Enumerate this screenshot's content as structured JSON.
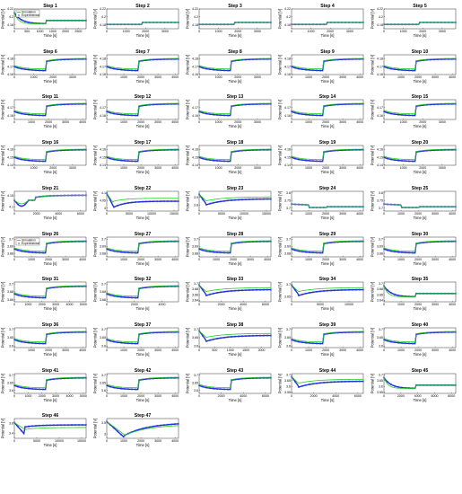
{
  "figure": {
    "xlabel": "Time [s]",
    "ylabel": "Potential [V]",
    "legend": {
      "simulation": "Simulation",
      "experimental": "Experimental"
    },
    "colors": {
      "simulation": "#22cc22",
      "experimental": "#1f2fd6",
      "experimental_marker": "#3140e8"
    }
  },
  "chart_data": [
    {
      "title": "Step 1",
      "type": "line",
      "xticks": [
        "0",
        "500",
        "1000",
        "1500",
        "2000",
        "2500"
      ],
      "xmax": 2800,
      "yticks": [
        "4.18",
        "4.2",
        "4.22"
      ],
      "ymin": 4.17,
      "ymax": 4.22,
      "shape": "decay_then_step",
      "legend": "top-left"
    },
    {
      "title": "Step 2",
      "type": "line",
      "xticks": [
        "0",
        "1000",
        "2000",
        "3000"
      ],
      "xmax": 3700,
      "yticks": [
        "4.18",
        "4.2",
        "4.22"
      ],
      "ymin": 4.17,
      "ymax": 4.22,
      "shape": "step_flat"
    },
    {
      "title": "Step 3",
      "type": "line",
      "xticks": [
        "0",
        "1000",
        "2000",
        "3000"
      ],
      "xmax": 3700,
      "yticks": [
        "4.18",
        "4.2",
        "4.22"
      ],
      "ymin": 4.17,
      "ymax": 4.22,
      "shape": "step_flat"
    },
    {
      "title": "Step 4",
      "type": "line",
      "xticks": [
        "0",
        "1000",
        "2000",
        "3000"
      ],
      "xmax": 3700,
      "yticks": [
        "4.18",
        "4.2",
        "4.22"
      ],
      "ymin": 4.17,
      "ymax": 4.22,
      "shape": "step_flat"
    },
    {
      "title": "Step 5",
      "type": "line",
      "xticks": [
        "0",
        "1000",
        "2000",
        "3000"
      ],
      "xmax": 3700,
      "yticks": [
        "4.18",
        "4.2",
        "4.22"
      ],
      "ymin": 4.17,
      "ymax": 4.22,
      "shape": "step_flat"
    },
    {
      "title": "Step 6",
      "type": "line",
      "xticks": [
        "0",
        "1000",
        "2000",
        "3000"
      ],
      "xmax": 3700,
      "yticks": [
        "4.16",
        "4.17",
        "4.18"
      ],
      "ymin": 4.16,
      "ymax": 4.185,
      "shape": "step"
    },
    {
      "title": "Step 7",
      "type": "line",
      "xticks": [
        "0",
        "1000",
        "2000",
        "3000",
        "4000"
      ],
      "xmax": 4200,
      "yticks": [
        "4.16",
        "4.17",
        "4.18"
      ],
      "ymin": 4.16,
      "ymax": 4.185,
      "shape": "step"
    },
    {
      "title": "Step 8",
      "type": "line",
      "xticks": [
        "0",
        "1000",
        "2000",
        "3000"
      ],
      "xmax": 3700,
      "yticks": [
        "4.16",
        "4.17",
        "4.18"
      ],
      "ymin": 4.16,
      "ymax": 4.185,
      "shape": "step"
    },
    {
      "title": "Step 9",
      "type": "line",
      "xticks": [
        "0",
        "1000",
        "2000",
        "3000",
        "4000"
      ],
      "xmax": 4200,
      "yticks": [
        "4.16",
        "4.17",
        "4.18"
      ],
      "ymin": 4.16,
      "ymax": 4.185,
      "shape": "step"
    },
    {
      "title": "Step 10",
      "type": "line",
      "xticks": [
        "0",
        "1000",
        "2000",
        "3000",
        "4000"
      ],
      "xmax": 4200,
      "yticks": [
        "4.16",
        "4.17",
        "4.18"
      ],
      "ymin": 4.16,
      "ymax": 4.185,
      "shape": "step"
    },
    {
      "title": "Step 11",
      "type": "line",
      "xticks": [
        "0",
        "1000",
        "2000",
        "3000",
        "4000"
      ],
      "xmax": 4200,
      "yticks": [
        "4.16",
        "4.17"
      ],
      "ymin": 4.155,
      "ymax": 4.18,
      "shape": "step"
    },
    {
      "title": "Step 12",
      "type": "line",
      "xticks": [
        "0",
        "1000",
        "2000",
        "3000",
        "4000"
      ],
      "xmax": 4200,
      "yticks": [
        "4.16",
        "4.17"
      ],
      "ymin": 4.155,
      "ymax": 4.18,
      "shape": "step"
    },
    {
      "title": "Step 13",
      "type": "line",
      "xticks": [
        "0",
        "1000",
        "2000",
        "3000"
      ],
      "xmax": 3700,
      "yticks": [
        "4.16",
        "4.17"
      ],
      "ymin": 4.155,
      "ymax": 4.18,
      "shape": "step"
    },
    {
      "title": "Step 14",
      "type": "line",
      "xticks": [
        "0",
        "1000",
        "2000",
        "3000",
        "4000"
      ],
      "xmax": 4200,
      "yticks": [
        "4.16",
        "4.17"
      ],
      "ymin": 4.155,
      "ymax": 4.18,
      "shape": "step"
    },
    {
      "title": "Step 15",
      "type": "line",
      "xticks": [
        "0",
        "1000",
        "2000",
        "3000"
      ],
      "xmax": 3700,
      "yticks": [
        "4.16",
        "4.17"
      ],
      "ymin": 4.155,
      "ymax": 4.18,
      "shape": "step"
    },
    {
      "title": "Step 16",
      "type": "line",
      "xticks": [
        "0",
        "1000",
        "2000",
        "3000"
      ],
      "xmax": 3700,
      "yticks": [
        "4.14",
        "4.15",
        "4.16"
      ],
      "ymin": 4.14,
      "ymax": 4.165,
      "shape": "step"
    },
    {
      "title": "Step 17",
      "type": "line",
      "xticks": [
        "0",
        "1000",
        "2000",
        "3000",
        "4000"
      ],
      "xmax": 4200,
      "yticks": [
        "4.14",
        "4.15",
        "4.16"
      ],
      "ymin": 4.14,
      "ymax": 4.165,
      "shape": "step"
    },
    {
      "title": "Step 18",
      "type": "line",
      "xticks": [
        "0",
        "1000",
        "2000",
        "3000"
      ],
      "xmax": 3700,
      "yticks": [
        "4.14",
        "4.15",
        "4.16"
      ],
      "ymin": 4.14,
      "ymax": 4.165,
      "shape": "step"
    },
    {
      "title": "Step 19",
      "type": "line",
      "xticks": [
        "0",
        "1000",
        "2000",
        "3000",
        "4000"
      ],
      "xmax": 4200,
      "yticks": [
        "4.14",
        "4.15",
        "4.16"
      ],
      "ymin": 4.14,
      "ymax": 4.165,
      "shape": "step"
    },
    {
      "title": "Step 20",
      "type": "line",
      "xticks": [
        "0",
        "1000",
        "2000",
        "3000"
      ],
      "xmax": 3700,
      "yticks": [
        "4.14",
        "4.15",
        "4.16"
      ],
      "ymin": 4.14,
      "ymax": 4.165,
      "shape": "step"
    },
    {
      "title": "Step 21",
      "type": "line",
      "xticks": [
        "0",
        "2000",
        "4000",
        "6000"
      ],
      "xmax": 6500,
      "yticks": [
        "4.1",
        "4.15"
      ],
      "ymin": 4.08,
      "ymax": 4.17,
      "shape": "dip_step"
    },
    {
      "title": "Step 22",
      "type": "line",
      "xticks": [
        "0",
        "5000",
        "10000",
        "15000"
      ],
      "xmax": 16000,
      "yticks": [
        "4",
        "4.05",
        "4.1"
      ],
      "ymin": 3.98,
      "ymax": 4.11,
      "shape": "deep_dip"
    },
    {
      "title": "Step 23",
      "type": "line",
      "xticks": [
        "0",
        "5000",
        "10000",
        "15000"
      ],
      "xmax": 16000,
      "yticks": [
        "3.8",
        "3.9"
      ],
      "ymin": 3.72,
      "ymax": 3.98,
      "shape": "drop_recover"
    },
    {
      "title": "Step 24",
      "type": "line",
      "xticks": [
        "0",
        "1000",
        "2000",
        "3000",
        "4000"
      ],
      "xmax": 4200,
      "yticks": [
        "3.7",
        "3.75",
        "3.8"
      ],
      "ymin": 3.68,
      "ymax": 3.81,
      "shape": "low_flat"
    },
    {
      "title": "Step 25",
      "type": "line",
      "xticks": [
        "0",
        "1000",
        "2000",
        "3000",
        "4000"
      ],
      "xmax": 4200,
      "yticks": [
        "3.7",
        "3.75",
        "3.8"
      ],
      "ymin": 3.68,
      "ymax": 3.81,
      "shape": "low_flat"
    },
    {
      "title": "Step 26",
      "type": "line",
      "xticks": [
        "0",
        "1000",
        "2000",
        "3000",
        "4000"
      ],
      "xmax": 4200,
      "yticks": [
        "3.68",
        "3.69",
        "3.7"
      ],
      "ymin": 3.675,
      "ymax": 3.703,
      "shape": "step",
      "legend": "top-left"
    },
    {
      "title": "Step 27",
      "type": "line",
      "xticks": [
        "0",
        "1000",
        "2000",
        "3000",
        "4000"
      ],
      "xmax": 4200,
      "yticks": [
        "3.68",
        "3.69",
        "3.7"
      ],
      "ymin": 3.675,
      "ymax": 3.703,
      "shape": "step"
    },
    {
      "title": "Step 28",
      "type": "line",
      "xticks": [
        "0",
        "1000",
        "2000",
        "3000",
        "4000"
      ],
      "xmax": 4200,
      "yticks": [
        "3.68",
        "3.69",
        "3.7"
      ],
      "ymin": 3.675,
      "ymax": 3.703,
      "shape": "step"
    },
    {
      "title": "Step 29",
      "type": "line",
      "xticks": [
        "0",
        "1000",
        "2000",
        "3000",
        "4000"
      ],
      "xmax": 4200,
      "yticks": [
        "3.68",
        "3.69",
        "3.7"
      ],
      "ymin": 3.675,
      "ymax": 3.703,
      "shape": "step"
    },
    {
      "title": "Step 30",
      "type": "line",
      "xticks": [
        "0",
        "1000",
        "2000",
        "3000",
        "4000"
      ],
      "xmax": 4200,
      "yticks": [
        "3.68",
        "3.69",
        "3.7"
      ],
      "ymin": 3.675,
      "ymax": 3.703,
      "shape": "step"
    },
    {
      "title": "Step 31",
      "type": "line",
      "xticks": [
        "0",
        "1000",
        "2000",
        "3000",
        "4000",
        "5000"
      ],
      "xmax": 5200,
      "yticks": [
        "3.66",
        "3.68",
        "3.7"
      ],
      "ymin": 3.655,
      "ymax": 3.705,
      "shape": "step"
    },
    {
      "title": "Step 32",
      "type": "line",
      "xticks": [
        "0",
        "2000",
        "4000"
      ],
      "xmax": 5200,
      "yticks": [
        "3.66",
        "3.68",
        "3.7"
      ],
      "ymin": 3.655,
      "ymax": 3.705,
      "shape": "step"
    },
    {
      "title": "Step 33",
      "type": "line",
      "xticks": [
        "0",
        "2000",
        "4000",
        "6000"
      ],
      "xmax": 6500,
      "yticks": [
        "3.64",
        "3.66",
        "3.68",
        "3.7"
      ],
      "ymin": 3.635,
      "ymax": 3.705,
      "shape": "drop_recover"
    },
    {
      "title": "Step 34",
      "type": "line",
      "xticks": [
        "0",
        "5000",
        "10000"
      ],
      "xmax": 12500,
      "yticks": [
        "3.65",
        "3.7"
      ],
      "ymin": 3.63,
      "ymax": 3.71,
      "shape": "drop_recover"
    },
    {
      "title": "Step 35",
      "type": "line",
      "xticks": [
        "0",
        "1000",
        "2000",
        "3000",
        "4000"
      ],
      "xmax": 4200,
      "yticks": [
        "3.64",
        "3.66",
        "3.68",
        "3.7"
      ],
      "ymin": 3.635,
      "ymax": 3.705,
      "shape": "decay_then_step"
    },
    {
      "title": "Step 36",
      "type": "line",
      "xticks": [
        "0",
        "1000",
        "2000",
        "3000",
        "4000"
      ],
      "xmax": 4200,
      "yticks": [
        "3.6",
        "3.65",
        "3.7"
      ],
      "ymin": 3.59,
      "ymax": 3.71,
      "shape": "step"
    },
    {
      "title": "Step 37",
      "type": "line",
      "xticks": [
        "0",
        "1000",
        "2000",
        "3000",
        "4000"
      ],
      "xmax": 4200,
      "yticks": [
        "3.6",
        "3.65",
        "3.7"
      ],
      "ymin": 3.59,
      "ymax": 3.71,
      "shape": "step"
    },
    {
      "title": "Step 38",
      "type": "line",
      "xticks": [
        "0",
        "500",
        "1000",
        "1500",
        "2000"
      ],
      "xmax": 2300,
      "yticks": [
        "3.6",
        "3.65",
        "3.7"
      ],
      "ymin": 3.59,
      "ymax": 3.71,
      "shape": "drop_recover"
    },
    {
      "title": "Step 39",
      "type": "line",
      "xticks": [
        "0",
        "1000",
        "2000",
        "3000",
        "4000"
      ],
      "xmax": 4200,
      "yticks": [
        "3.6",
        "3.65",
        "3.7"
      ],
      "ymin": 3.59,
      "ymax": 3.71,
      "shape": "step"
    },
    {
      "title": "Step 40",
      "type": "line",
      "xticks": [
        "0",
        "1000",
        "2000",
        "3000",
        "4000"
      ],
      "xmax": 4200,
      "yticks": [
        "3.6",
        "3.65",
        "3.7"
      ],
      "ymin": 3.59,
      "ymax": 3.71,
      "shape": "step"
    },
    {
      "title": "Step 41",
      "type": "line",
      "xticks": [
        "0",
        "1000",
        "2000",
        "3000",
        "4000",
        "5000"
      ],
      "xmax": 5200,
      "yticks": [
        "3.6",
        "3.65",
        "3.7"
      ],
      "ymin": 3.58,
      "ymax": 3.71,
      "shape": "step"
    },
    {
      "title": "Step 42",
      "type": "line",
      "xticks": [
        "0",
        "1000",
        "2000",
        "3000",
        "4000"
      ],
      "xmax": 4200,
      "yticks": [
        "3.6",
        "3.65",
        "3.7"
      ],
      "ymin": 3.58,
      "ymax": 3.71,
      "shape": "step"
    },
    {
      "title": "Step 43",
      "type": "line",
      "xticks": [
        "0",
        "2000",
        "4000",
        "6000"
      ],
      "xmax": 6500,
      "yticks": [
        "3.6",
        "3.65",
        "3.7"
      ],
      "ymin": 3.58,
      "ymax": 3.71,
      "shape": "step"
    },
    {
      "title": "Step 44",
      "type": "line",
      "xticks": [
        "0",
        "2000",
        "4000",
        "6000"
      ],
      "xmax": 6500,
      "yticks": [
        "3.55",
        "3.6",
        "3.65",
        "3.7"
      ],
      "ymin": 3.54,
      "ymax": 3.71,
      "shape": "drop_recover"
    },
    {
      "title": "Step 45",
      "type": "line",
      "xticks": [
        "0",
        "2000",
        "4000",
        "6000",
        "8000"
      ],
      "xmax": 8500,
      "yticks": [
        "3.55",
        "3.6",
        "3.65",
        "3.7"
      ],
      "ymin": 3.54,
      "ymax": 3.71,
      "shape": "decay_then_step"
    },
    {
      "title": "Step 46",
      "type": "line",
      "xticks": [
        "0",
        "5000",
        "10000",
        "15000"
      ],
      "xmax": 16000,
      "yticks": [
        "3.4",
        "3.6"
      ],
      "ymin": 3.3,
      "ymax": 3.7,
      "shape": "dip_recover_flat"
    },
    {
      "title": "Step 47",
      "type": "line",
      "xticks": [
        "0",
        "1000",
        "2000",
        "3000",
        "4000"
      ],
      "xmax": 4200,
      "yticks": [
        "3",
        "3.5"
      ],
      "ymin": 2.8,
      "ymax": 3.7,
      "shape": "deep_dip_recover"
    }
  ]
}
